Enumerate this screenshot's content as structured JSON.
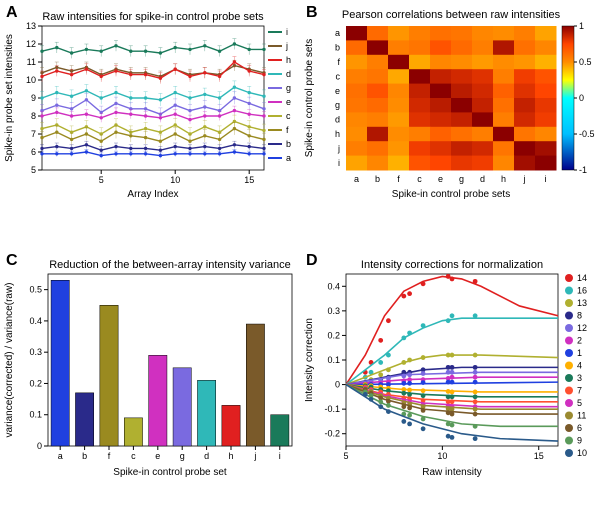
{
  "panelA": {
    "letter": "A",
    "title": "Raw intensities for spike-in control probe sets",
    "xlabel": "Array Index",
    "ylabel": "Spike-in probe set intensities",
    "xlim": [
      1,
      16
    ],
    "ylim": [
      5,
      13
    ],
    "xticks": [
      5,
      10,
      15
    ],
    "xticklabels": [
      "5",
      "10",
      "15"
    ],
    "yticks": [
      5,
      6,
      7,
      8,
      9,
      10,
      11,
      12,
      13
    ],
    "yticklabels": [
      "5",
      "6",
      "7",
      "8",
      "9",
      "10",
      "11",
      "12",
      "13"
    ],
    "x": [
      1,
      2,
      3,
      4,
      5,
      6,
      7,
      8,
      9,
      10,
      11,
      12,
      13,
      14,
      15,
      16
    ],
    "series": [
      {
        "name": "i",
        "color": "#1a7a5a",
        "vals": [
          11.6,
          11.8,
          11.5,
          11.7,
          11.6,
          11.9,
          11.6,
          11.6,
          11.5,
          11.8,
          11.7,
          11.9,
          11.6,
          12.0,
          11.7,
          11.7
        ],
        "err": 0.3
      },
      {
        "name": "j",
        "color": "#7a5a2a",
        "vals": [
          10.4,
          10.7,
          10.5,
          10.7,
          10.3,
          10.6,
          10.4,
          10.4,
          10.2,
          10.6,
          10.3,
          10.4,
          10.3,
          10.8,
          10.6,
          10.4
        ],
        "err": 0.3
      },
      {
        "name": "h",
        "color": "#e02020",
        "vals": [
          10.2,
          10.5,
          10.3,
          10.6,
          10.2,
          10.5,
          10.3,
          10.3,
          10.1,
          10.6,
          10.2,
          10.4,
          10.2,
          11.0,
          10.5,
          10.3
        ],
        "err": 0.3
      },
      {
        "name": "d",
        "color": "#2fb8b8",
        "vals": [
          9.0,
          9.3,
          9.1,
          9.4,
          9.0,
          9.3,
          9.0,
          9.0,
          8.9,
          9.3,
          9.0,
          9.2,
          9.0,
          9.6,
          9.3,
          9.1
        ],
        "err": 0.35
      },
      {
        "name": "g",
        "color": "#7a6ae0",
        "vals": [
          8.3,
          8.6,
          8.4,
          8.9,
          8.2,
          8.7,
          8.4,
          8.4,
          8.1,
          8.6,
          8.3,
          8.5,
          8.3,
          9.0,
          8.7,
          8.4
        ],
        "err": 0.35
      },
      {
        "name": "e",
        "color": "#d030c0",
        "vals": [
          8.0,
          8.2,
          8.0,
          8.1,
          7.9,
          8.2,
          8.1,
          8.0,
          7.9,
          8.1,
          7.8,
          8.0,
          8.0,
          8.3,
          8.1,
          8.0
        ],
        "err": 0.25
      },
      {
        "name": "c",
        "color": "#b0b030",
        "vals": [
          7.3,
          7.5,
          7.1,
          7.4,
          7.0,
          7.5,
          7.1,
          7.3,
          7.1,
          7.5,
          7.0,
          7.4,
          7.1,
          7.7,
          7.4,
          7.2
        ],
        "err": 0.35
      },
      {
        "name": "f",
        "color": "#9a8a20",
        "vals": [
          6.8,
          7.1,
          6.7,
          7.0,
          6.6,
          7.1,
          6.9,
          6.8,
          6.6,
          7.0,
          6.6,
          6.9,
          6.7,
          7.3,
          6.9,
          6.7
        ],
        "err": 0.35
      },
      {
        "name": "b",
        "color": "#2a2a8a",
        "vals": [
          6.2,
          6.3,
          6.2,
          6.4,
          6.1,
          6.3,
          6.2,
          6.2,
          6.1,
          6.3,
          6.2,
          6.3,
          6.2,
          6.4,
          6.3,
          6.2
        ],
        "err": 0.2
      },
      {
        "name": "a",
        "color": "#2040e0",
        "vals": [
          5.9,
          5.9,
          5.9,
          6.0,
          5.8,
          5.9,
          5.9,
          5.9,
          5.8,
          5.9,
          5.9,
          5.9,
          5.9,
          6.0,
          5.9,
          5.9
        ],
        "err": 0.15
      }
    ],
    "font": {
      "title": 11,
      "axis": 10,
      "tick": 9,
      "legend": 9
    }
  },
  "panelB": {
    "letter": "B",
    "title": "Pearson correlations between raw intensities",
    "xlabel": "Spike-in control probe sets",
    "ylabel": "Spike-in control probe sets",
    "order": [
      "a",
      "b",
      "f",
      "c",
      "e",
      "g",
      "d",
      "h",
      "j",
      "i"
    ],
    "clim": [
      -1,
      1
    ],
    "cticks": [
      -1,
      -0.5,
      0,
      0.5,
      1
    ],
    "cticklabels": [
      "-1",
      "-0.5",
      "0",
      "0.5",
      "1"
    ],
    "matrix": [
      [
        1.0,
        0.62,
        0.48,
        0.55,
        0.6,
        0.58,
        0.52,
        0.5,
        0.55,
        0.45
      ],
      [
        0.62,
        1.0,
        0.55,
        0.58,
        0.7,
        0.62,
        0.55,
        0.92,
        0.6,
        0.52
      ],
      [
        0.48,
        0.55,
        1.0,
        0.44,
        0.52,
        0.5,
        0.47,
        0.5,
        0.48,
        0.42
      ],
      [
        0.55,
        0.58,
        0.44,
        1.0,
        0.88,
        0.85,
        0.82,
        0.55,
        0.78,
        0.7
      ],
      [
        0.6,
        0.7,
        0.52,
        0.88,
        1.0,
        0.9,
        0.85,
        0.65,
        0.82,
        0.75
      ],
      [
        0.58,
        0.62,
        0.5,
        0.85,
        0.9,
        1.0,
        0.88,
        0.6,
        0.88,
        0.8
      ],
      [
        0.52,
        0.55,
        0.47,
        0.82,
        0.85,
        0.88,
        1.0,
        0.55,
        0.85,
        0.78
      ],
      [
        0.5,
        0.92,
        0.5,
        0.55,
        0.65,
        0.6,
        0.55,
        1.0,
        0.58,
        0.52
      ],
      [
        0.55,
        0.6,
        0.48,
        0.78,
        0.82,
        0.88,
        0.85,
        0.58,
        1.0,
        0.95
      ],
      [
        0.45,
        0.52,
        0.42,
        0.7,
        0.75,
        0.8,
        0.78,
        0.52,
        0.95,
        1.0
      ]
    ],
    "colormap": [
      [
        -1,
        "#00008b"
      ],
      [
        -0.5,
        "#00bfff"
      ],
      [
        0,
        "#00ffff"
      ],
      [
        0.25,
        "#ffff00"
      ],
      [
        0.5,
        "#ff8c00"
      ],
      [
        0.75,
        "#ff4500"
      ],
      [
        1,
        "#8b0000"
      ]
    ],
    "font": {
      "title": 11,
      "axis": 10,
      "tick": 9
    }
  },
  "panelC": {
    "letter": "C",
    "title": "Reduction of the between-array intensity variance",
    "xlabel": "Spike-in control probe set",
    "ylabel": "variance(corrected) / variance(raw)",
    "xlim": [
      0.5,
      10.5
    ],
    "ylim": [
      0,
      0.55
    ],
    "yticks": [
      0,
      0.1,
      0.2,
      0.3,
      0.4,
      0.5
    ],
    "yticklabels": [
      "0",
      "0.1",
      "0.2",
      "0.3",
      "0.4",
      "0.5"
    ],
    "bars": [
      {
        "name": "a",
        "val": 0.53,
        "color": "#2040e0"
      },
      {
        "name": "b",
        "val": 0.17,
        "color": "#2a2a8a"
      },
      {
        "name": "f",
        "val": 0.45,
        "color": "#9a8a20"
      },
      {
        "name": "c",
        "val": 0.09,
        "color": "#b0b030"
      },
      {
        "name": "e",
        "val": 0.29,
        "color": "#d030c0"
      },
      {
        "name": "g",
        "val": 0.25,
        "color": "#7a6ae0"
      },
      {
        "name": "d",
        "val": 0.21,
        "color": "#2fb8b8"
      },
      {
        "name": "h",
        "val": 0.13,
        "color": "#e02020"
      },
      {
        "name": "j",
        "val": 0.39,
        "color": "#7a5a2a"
      },
      {
        "name": "i",
        "val": 0.1,
        "color": "#1a7a5a"
      }
    ],
    "bar_width": 0.75,
    "font": {
      "title": 11,
      "axis": 10,
      "tick": 9
    }
  },
  "panelD": {
    "letter": "D",
    "title": "Intensity corrections for normalization",
    "xlabel": "Raw intensity",
    "ylabel": "Intensity correction",
    "xlim": [
      5,
      16
    ],
    "ylim": [
      -0.25,
      0.45
    ],
    "xticks": [
      5,
      10,
      15
    ],
    "xticklabels": [
      "5",
      "10",
      "15"
    ],
    "yticks": [
      -0.2,
      -0.1,
      0,
      0.1,
      0.2,
      0.3,
      0.4
    ],
    "yticklabels": [
      "-0.2",
      "-0.1",
      "0",
      "0.1",
      "0.2",
      "0.3",
      "0.4"
    ],
    "raw_x": [
      6,
      6.3,
      6.8,
      7.2,
      8.0,
      8.3,
      9.0,
      10.3,
      10.5,
      11.7
    ],
    "legend_order": [
      "14",
      "16",
      "13",
      "8",
      "12",
      "2",
      "1",
      "4",
      "3",
      "7",
      "5",
      "11",
      "6",
      "9",
      "10"
    ],
    "series": [
      {
        "name": "14",
        "color": "#e02020",
        "curve": [
          [
            5,
            0
          ],
          [
            6,
            0.12
          ],
          [
            7,
            0.28
          ],
          [
            8,
            0.38
          ],
          [
            9,
            0.42
          ],
          [
            10,
            0.44
          ],
          [
            11,
            0.43
          ],
          [
            12,
            0.4
          ],
          [
            14,
            0.32
          ],
          [
            16,
            0.28
          ]
        ],
        "pts": [
          0.05,
          0.09,
          0.18,
          0.26,
          0.36,
          0.37,
          0.41,
          0.44,
          0.43,
          0.42
        ]
      },
      {
        "name": "16",
        "color": "#2fb8b8",
        "curve": [
          [
            5,
            0
          ],
          [
            6,
            0.06
          ],
          [
            7,
            0.12
          ],
          [
            8,
            0.19
          ],
          [
            9,
            0.23
          ],
          [
            10,
            0.26
          ],
          [
            11,
            0.27
          ],
          [
            12,
            0.27
          ],
          [
            14,
            0.27
          ],
          [
            16,
            0.27
          ]
        ],
        "pts": [
          0.03,
          0.05,
          0.09,
          0.12,
          0.19,
          0.21,
          0.24,
          0.26,
          0.28,
          0.28
        ]
      },
      {
        "name": "13",
        "color": "#b0b030",
        "curve": [
          [
            5,
            0
          ],
          [
            6,
            0.03
          ],
          [
            7,
            0.06
          ],
          [
            8,
            0.09
          ],
          [
            9,
            0.11
          ],
          [
            10,
            0.12
          ],
          [
            12,
            0.12
          ],
          [
            16,
            0.11
          ]
        ],
        "pts": [
          0.01,
          0.02,
          0.04,
          0.06,
          0.09,
          0.1,
          0.11,
          0.12,
          0.12,
          0.12
        ]
      },
      {
        "name": "8",
        "color": "#2a2a8a",
        "curve": [
          [
            5,
            0
          ],
          [
            7,
            0.03
          ],
          [
            9,
            0.06
          ],
          [
            11,
            0.07
          ],
          [
            16,
            0.07
          ]
        ],
        "pts": [
          0.005,
          0.01,
          0.02,
          0.03,
          0.05,
          0.05,
          0.06,
          0.07,
          0.07,
          0.07
        ]
      },
      {
        "name": "12",
        "color": "#7a6ae0",
        "curve": [
          [
            5,
            0
          ],
          [
            8,
            0.04
          ],
          [
            12,
            0.05
          ],
          [
            16,
            0.05
          ]
        ],
        "pts": [
          0,
          0.01,
          0.015,
          0.025,
          0.035,
          0.04,
          0.045,
          0.05,
          0.05,
          0.05
        ]
      },
      {
        "name": "2",
        "color": "#d030c0",
        "curve": [
          [
            5,
            0
          ],
          [
            8,
            0.02
          ],
          [
            12,
            0.03
          ],
          [
            16,
            0.03
          ]
        ],
        "pts": [
          0,
          0,
          0.005,
          0.01,
          0.015,
          0.02,
          0.02,
          0.025,
          0.03,
          0.03
        ]
      },
      {
        "name": "1",
        "color": "#2040e0",
        "curve": [
          [
            5,
            0
          ],
          [
            16,
            0.01
          ]
        ],
        "pts": [
          0,
          0,
          0,
          0,
          0.005,
          0.005,
          0.008,
          0.01,
          0.01,
          0.01
        ]
      },
      {
        "name": "4",
        "color": "#ffb000",
        "curve": [
          [
            5,
            0
          ],
          [
            8,
            -0.02
          ],
          [
            12,
            -0.03
          ],
          [
            16,
            -0.03
          ]
        ],
        "pts": [
          0,
          -0.005,
          -0.01,
          -0.015,
          -0.02,
          -0.022,
          -0.025,
          -0.028,
          -0.03,
          -0.03
        ]
      },
      {
        "name": "3",
        "color": "#1a7a5a",
        "curve": [
          [
            5,
            0
          ],
          [
            7,
            -0.025
          ],
          [
            9,
            -0.04
          ],
          [
            12,
            -0.05
          ],
          [
            16,
            -0.05
          ]
        ],
        "pts": [
          -0.005,
          -0.01,
          -0.02,
          -0.025,
          -0.035,
          -0.04,
          -0.045,
          -0.05,
          -0.05,
          -0.05
        ]
      },
      {
        "name": "7",
        "color": "#ff5030",
        "curve": [
          [
            5,
            0
          ],
          [
            7,
            -0.04
          ],
          [
            9,
            -0.06
          ],
          [
            12,
            -0.07
          ],
          [
            16,
            -0.07
          ]
        ],
        "pts": [
          -0.01,
          -0.02,
          -0.03,
          -0.04,
          -0.055,
          -0.058,
          -0.065,
          -0.07,
          -0.07,
          -0.07
        ]
      },
      {
        "name": "5",
        "color": "#d030c0",
        "curve": [
          [
            5,
            0
          ],
          [
            7,
            -0.045
          ],
          [
            9,
            -0.075
          ],
          [
            12,
            -0.09
          ],
          [
            16,
            -0.09
          ]
        ],
        "pts": [
          -0.015,
          -0.025,
          -0.04,
          -0.05,
          -0.07,
          -0.075,
          -0.082,
          -0.088,
          -0.09,
          -0.09
        ]
      },
      {
        "name": "11",
        "color": "#9a8a30",
        "curve": [
          [
            5,
            0
          ],
          [
            7,
            -0.05
          ],
          [
            9,
            -0.085
          ],
          [
            12,
            -0.1
          ],
          [
            16,
            -0.1
          ]
        ],
        "pts": [
          -0.018,
          -0.028,
          -0.045,
          -0.055,
          -0.078,
          -0.083,
          -0.09,
          -0.098,
          -0.1,
          -0.1
        ]
      },
      {
        "name": "6",
        "color": "#7a5a2a",
        "curve": [
          [
            5,
            0
          ],
          [
            7,
            -0.06
          ],
          [
            9,
            -0.1
          ],
          [
            12,
            -0.12
          ],
          [
            16,
            -0.12
          ]
        ],
        "pts": [
          -0.02,
          -0.035,
          -0.055,
          -0.068,
          -0.09,
          -0.095,
          -0.105,
          -0.115,
          -0.12,
          -0.12
        ]
      },
      {
        "name": "9",
        "color": "#5a9a5a",
        "curve": [
          [
            5,
            0
          ],
          [
            7,
            -0.08
          ],
          [
            9,
            -0.13
          ],
          [
            11,
            -0.16
          ],
          [
            13,
            -0.17
          ],
          [
            16,
            -0.17
          ]
        ],
        "pts": [
          -0.03,
          -0.045,
          -0.07,
          -0.085,
          -0.12,
          -0.125,
          -0.14,
          -0.16,
          -0.165,
          -0.17
        ]
      },
      {
        "name": "10",
        "color": "#2a5a8a",
        "curve": [
          [
            5,
            0
          ],
          [
            7,
            -0.1
          ],
          [
            9,
            -0.16
          ],
          [
            11,
            -0.2
          ],
          [
            13,
            -0.22
          ],
          [
            16,
            -0.23
          ]
        ],
        "pts": [
          -0.04,
          -0.06,
          -0.09,
          -0.11,
          -0.15,
          -0.16,
          -0.18,
          -0.21,
          -0.215,
          -0.22
        ]
      }
    ],
    "font": {
      "title": 11,
      "axis": 10,
      "tick": 9,
      "legend": 9
    }
  }
}
